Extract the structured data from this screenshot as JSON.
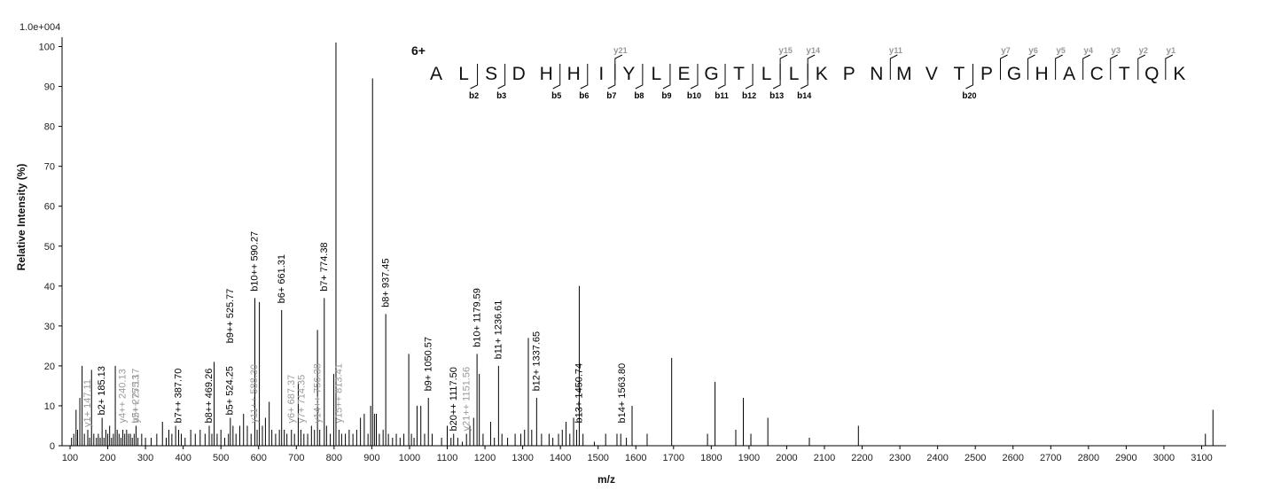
{
  "chart_data": {
    "type": "bar",
    "scale_label": "1.0e+004",
    "xlabel": "m/z",
    "ylabel": "Relative   Intensity (%)",
    "xlim": [
      100,
      3170
    ],
    "ylim": [
      0,
      101
    ],
    "xticks": [
      100,
      200,
      300,
      400,
      500,
      600,
      700,
      800,
      900,
      1000,
      1100,
      1200,
      1300,
      1400,
      1500,
      1600,
      1700,
      1800,
      1900,
      2000,
      2100,
      2200,
      2300,
      2400,
      2500,
      2600,
      2700,
      2800,
      2900,
      3000,
      3100
    ],
    "yticks": [
      0,
      10,
      20,
      30,
      40,
      50,
      60,
      70,
      80,
      90,
      100
    ],
    "peaks": [
      {
        "mz": 104,
        "y": 2
      },
      {
        "mz": 110,
        "y": 3
      },
      {
        "mz": 116,
        "y": 9
      },
      {
        "mz": 120,
        "y": 4
      },
      {
        "mz": 126,
        "y": 12
      },
      {
        "mz": 132,
        "y": 20
      },
      {
        "mz": 138,
        "y": 3
      },
      {
        "mz": 147,
        "y": 4
      },
      {
        "mz": 152,
        "y": 2
      },
      {
        "mz": 157,
        "y": 19
      },
      {
        "mz": 163,
        "y": 3
      },
      {
        "mz": 170,
        "y": 2
      },
      {
        "mz": 175,
        "y": 3
      },
      {
        "mz": 180,
        "y": 2
      },
      {
        "mz": 185,
        "y": 7
      },
      {
        "mz": 190,
        "y": 2
      },
      {
        "mz": 195,
        "y": 4
      },
      {
        "mz": 200,
        "y": 3
      },
      {
        "mz": 205,
        "y": 5
      },
      {
        "mz": 210,
        "y": 2
      },
      {
        "mz": 215,
        "y": 3
      },
      {
        "mz": 220,
        "y": 20
      },
      {
        "mz": 225,
        "y": 4
      },
      {
        "mz": 230,
        "y": 3
      },
      {
        "mz": 235,
        "y": 2
      },
      {
        "mz": 240,
        "y": 4
      },
      {
        "mz": 245,
        "y": 3
      },
      {
        "mz": 250,
        "y": 4
      },
      {
        "mz": 255,
        "y": 3
      },
      {
        "mz": 260,
        "y": 3
      },
      {
        "mz": 265,
        "y": 2
      },
      {
        "mz": 270,
        "y": 3
      },
      {
        "mz": 275,
        "y": 5
      },
      {
        "mz": 280,
        "y": 2
      },
      {
        "mz": 290,
        "y": 3
      },
      {
        "mz": 300,
        "y": 2
      },
      {
        "mz": 315,
        "y": 2
      },
      {
        "mz": 330,
        "y": 3
      },
      {
        "mz": 345,
        "y": 6
      },
      {
        "mz": 355,
        "y": 2
      },
      {
        "mz": 362,
        "y": 4
      },
      {
        "mz": 370,
        "y": 3
      },
      {
        "mz": 380,
        "y": 5
      },
      {
        "mz": 388,
        "y": 4
      },
      {
        "mz": 395,
        "y": 3
      },
      {
        "mz": 405,
        "y": 2
      },
      {
        "mz": 420,
        "y": 4
      },
      {
        "mz": 432,
        "y": 3
      },
      {
        "mz": 445,
        "y": 4
      },
      {
        "mz": 458,
        "y": 3
      },
      {
        "mz": 469,
        "y": 5
      },
      {
        "mz": 476,
        "y": 3
      },
      {
        "mz": 482,
        "y": 21
      },
      {
        "mz": 490,
        "y": 3
      },
      {
        "mz": 500,
        "y": 4
      },
      {
        "mz": 510,
        "y": 2
      },
      {
        "mz": 520,
        "y": 3
      },
      {
        "mz": 525,
        "y": 7
      },
      {
        "mz": 532,
        "y": 5
      },
      {
        "mz": 540,
        "y": 3
      },
      {
        "mz": 550,
        "y": 5
      },
      {
        "mz": 560,
        "y": 8
      },
      {
        "mz": 570,
        "y": 5
      },
      {
        "mz": 580,
        "y": 3
      },
      {
        "mz": 590,
        "y": 37
      },
      {
        "mz": 596,
        "y": 4
      },
      {
        "mz": 602,
        "y": 36
      },
      {
        "mz": 610,
        "y": 5
      },
      {
        "mz": 618,
        "y": 7
      },
      {
        "mz": 628,
        "y": 11
      },
      {
        "mz": 635,
        "y": 4
      },
      {
        "mz": 645,
        "y": 3
      },
      {
        "mz": 655,
        "y": 4
      },
      {
        "mz": 661,
        "y": 34
      },
      {
        "mz": 668,
        "y": 4
      },
      {
        "mz": 675,
        "y": 3
      },
      {
        "mz": 687,
        "y": 4
      },
      {
        "mz": 695,
        "y": 3
      },
      {
        "mz": 705,
        "y": 16
      },
      {
        "mz": 712,
        "y": 4
      },
      {
        "mz": 720,
        "y": 3
      },
      {
        "mz": 730,
        "y": 3
      },
      {
        "mz": 740,
        "y": 5
      },
      {
        "mz": 748,
        "y": 4
      },
      {
        "mz": 756,
        "y": 29
      },
      {
        "mz": 762,
        "y": 4
      },
      {
        "mz": 774,
        "y": 37
      },
      {
        "mz": 780,
        "y": 5
      },
      {
        "mz": 790,
        "y": 3
      },
      {
        "mz": 799,
        "y": 18
      },
      {
        "mz": 805,
        "y": 101
      },
      {
        "mz": 813,
        "y": 4
      },
      {
        "mz": 820,
        "y": 3
      },
      {
        "mz": 830,
        "y": 3
      },
      {
        "mz": 840,
        "y": 4
      },
      {
        "mz": 850,
        "y": 3
      },
      {
        "mz": 860,
        "y": 4
      },
      {
        "mz": 870,
        "y": 7
      },
      {
        "mz": 880,
        "y": 8
      },
      {
        "mz": 890,
        "y": 3
      },
      {
        "mz": 897,
        "y": 10
      },
      {
        "mz": 902,
        "y": 92
      },
      {
        "mz": 907,
        "y": 8
      },
      {
        "mz": 912,
        "y": 8
      },
      {
        "mz": 920,
        "y": 3
      },
      {
        "mz": 930,
        "y": 4
      },
      {
        "mz": 937,
        "y": 33
      },
      {
        "mz": 944,
        "y": 3
      },
      {
        "mz": 955,
        "y": 2
      },
      {
        "mz": 965,
        "y": 3
      },
      {
        "mz": 975,
        "y": 2
      },
      {
        "mz": 985,
        "y": 3
      },
      {
        "mz": 998,
        "y": 23
      },
      {
        "mz": 1005,
        "y": 3
      },
      {
        "mz": 1012,
        "y": 2
      },
      {
        "mz": 1020,
        "y": 10
      },
      {
        "mz": 1030,
        "y": 10
      },
      {
        "mz": 1040,
        "y": 3
      },
      {
        "mz": 1050,
        "y": 12
      },
      {
        "mz": 1060,
        "y": 3
      },
      {
        "mz": 1085,
        "y": 2
      },
      {
        "mz": 1100,
        "y": 5
      },
      {
        "mz": 1110,
        "y": 2
      },
      {
        "mz": 1117,
        "y": 3
      },
      {
        "mz": 1128,
        "y": 2
      },
      {
        "mz": 1140,
        "y": 1
      },
      {
        "mz": 1151,
        "y": 3
      },
      {
        "mz": 1160,
        "y": 5
      },
      {
        "mz": 1170,
        "y": 7
      },
      {
        "mz": 1179,
        "y": 23
      },
      {
        "mz": 1185,
        "y": 18
      },
      {
        "mz": 1195,
        "y": 3
      },
      {
        "mz": 1215,
        "y": 6
      },
      {
        "mz": 1225,
        "y": 2
      },
      {
        "mz": 1236,
        "y": 20
      },
      {
        "mz": 1245,
        "y": 3
      },
      {
        "mz": 1260,
        "y": 2
      },
      {
        "mz": 1280,
        "y": 3
      },
      {
        "mz": 1295,
        "y": 3
      },
      {
        "mz": 1305,
        "y": 4
      },
      {
        "mz": 1315,
        "y": 27
      },
      {
        "mz": 1324,
        "y": 4
      },
      {
        "mz": 1337,
        "y": 12
      },
      {
        "mz": 1350,
        "y": 3
      },
      {
        "mz": 1370,
        "y": 3
      },
      {
        "mz": 1380,
        "y": 2
      },
      {
        "mz": 1395,
        "y": 3
      },
      {
        "mz": 1405,
        "y": 4
      },
      {
        "mz": 1415,
        "y": 6
      },
      {
        "mz": 1425,
        "y": 3
      },
      {
        "mz": 1435,
        "y": 7
      },
      {
        "mz": 1443,
        "y": 4
      },
      {
        "mz": 1450,
        "y": 40
      },
      {
        "mz": 1460,
        "y": 3
      },
      {
        "mz": 1490,
        "y": 1
      },
      {
        "mz": 1520,
        "y": 3
      },
      {
        "mz": 1550,
        "y": 3
      },
      {
        "mz": 1560,
        "y": 3
      },
      {
        "mz": 1575,
        "y": 2
      },
      {
        "mz": 1590,
        "y": 10
      },
      {
        "mz": 1630,
        "y": 3
      },
      {
        "mz": 1695,
        "y": 22
      },
      {
        "mz": 1790,
        "y": 3
      },
      {
        "mz": 1810,
        "y": 16
      },
      {
        "mz": 1865,
        "y": 4
      },
      {
        "mz": 1885,
        "y": 12
      },
      {
        "mz": 1905,
        "y": 3
      },
      {
        "mz": 1950,
        "y": 7
      },
      {
        "mz": 2060,
        "y": 2
      },
      {
        "mz": 2190,
        "y": 5
      },
      {
        "mz": 3110,
        "y": 3
      },
      {
        "mz": 3130,
        "y": 9
      }
    ],
    "peak_labels": [
      {
        "mz": 147.11,
        "y": 4,
        "text": "y1+ 147.11",
        "grey": true
      },
      {
        "mz": 185.13,
        "y": 7,
        "text": "b2+ 185.13",
        "grey": false
      },
      {
        "mz": 240.13,
        "y": 5,
        "text": "y4++ 240.13",
        "grey": true
      },
      {
        "mz": 275.13,
        "y": 5,
        "text": "y2+ 275.13",
        "grey": true
      },
      {
        "mz": 275.17,
        "y": 5,
        "text": "b5++ 275.17",
        "grey": true
      },
      {
        "mz": 387.7,
        "y": 5,
        "text": "b7++ 387.70",
        "grey": false
      },
      {
        "mz": 469.26,
        "y": 5,
        "text": "b8++ 469.26",
        "grey": false
      },
      {
        "mz": 524.25,
        "y": 7,
        "text": "b5+ 524.25",
        "grey": false
      },
      {
        "mz": 525.77,
        "y": 25,
        "text": "b9++ 525.77",
        "grey": false
      },
      {
        "mz": 590.27,
        "y": 38,
        "text": "b10++ 590.27",
        "grey": false
      },
      {
        "mz": 588.3,
        "y": 5,
        "text": "y11++ 588.30",
        "grey": true
      },
      {
        "mz": 661.31,
        "y": 35,
        "text": "b6+ 661.31",
        "grey": false
      },
      {
        "mz": 687.37,
        "y": 5,
        "text": "y6+ 687.37",
        "grey": true
      },
      {
        "mz": 714.35,
        "y": 5,
        "text": "y7+ 714.35",
        "grey": true
      },
      {
        "mz": 756.38,
        "y": 5,
        "text": "y14++ 756.38",
        "grey": true
      },
      {
        "mz": 774.38,
        "y": 38,
        "text": "b7+ 774.38",
        "grey": false
      },
      {
        "mz": 813.41,
        "y": 5,
        "text": "y15++ 813.41",
        "grey": true
      },
      {
        "mz": 937.45,
        "y": 34,
        "text": "b8+ 937.45",
        "grey": false
      },
      {
        "mz": 1050.57,
        "y": 13,
        "text": "b9+ 1050.57",
        "grey": false
      },
      {
        "mz": 1117.5,
        "y": 3,
        "text": "b20++ 1117.50",
        "grey": false
      },
      {
        "mz": 1151.56,
        "y": 3,
        "text": "y21++ 1151.56",
        "grey": true
      },
      {
        "mz": 1179.59,
        "y": 24,
        "text": "b10+ 1179.59",
        "grey": false
      },
      {
        "mz": 1236.61,
        "y": 21,
        "text": "b11+ 1236.61",
        "grey": false
      },
      {
        "mz": 1337.65,
        "y": 13,
        "text": "b12+ 1337.65",
        "grey": false
      },
      {
        "mz": 1450.74,
        "y": 5,
        "text": "b13+ 1450.74",
        "grey": false
      },
      {
        "mz": 1563.8,
        "y": 5,
        "text": "b14+ 1563.80",
        "grey": false
      }
    ],
    "sequence": {
      "charge": "6+",
      "residues": [
        "A",
        "L",
        "S",
        "D",
        "H",
        "H",
        "I",
        "Y",
        "L",
        "E",
        "G",
        "T",
        "L",
        "L",
        "K",
        "P",
        "N",
        "M",
        "V",
        "T",
        "P",
        "G",
        "H",
        "A",
        "C",
        "T",
        "Q",
        "K"
      ],
      "b_ions": [
        {
          "after": 2,
          "label": "b",
          "num": "2"
        },
        {
          "after": 3,
          "label": "b",
          "num": "3"
        },
        {
          "after": 5,
          "label": "b",
          "num": "5"
        },
        {
          "after": 6,
          "label": "b",
          "num": "6"
        },
        {
          "after": 7,
          "label": "b",
          "num": "7"
        },
        {
          "after": 8,
          "label": "b",
          "num": "8"
        },
        {
          "after": 9,
          "label": "b",
          "num": "9"
        },
        {
          "after": 10,
          "label": "b",
          "num": "10"
        },
        {
          "after": 11,
          "label": "b",
          "num": "11"
        },
        {
          "after": 12,
          "label": "b",
          "num": "12"
        },
        {
          "after": 13,
          "label": "b",
          "num": "13"
        },
        {
          "after": 14,
          "label": "b",
          "num": "14"
        },
        {
          "after": 20,
          "label": "b",
          "num": "20"
        }
      ],
      "y_ions": [
        {
          "before": 8,
          "label": "y",
          "num": "21"
        },
        {
          "before": 14,
          "label": "y",
          "num": "15"
        },
        {
          "before": 15,
          "label": "y",
          "num": "14"
        },
        {
          "before": 18,
          "label": "y",
          "num": "11"
        },
        {
          "before": 22,
          "label": "y",
          "num": "7"
        },
        {
          "before": 23,
          "label": "y",
          "num": "6"
        },
        {
          "before": 24,
          "label": "y",
          "num": "5"
        },
        {
          "before": 25,
          "label": "y",
          "num": "4"
        },
        {
          "before": 26,
          "label": "y",
          "num": "3"
        },
        {
          "before": 27,
          "label": "y",
          "num": "2"
        },
        {
          "before": 28,
          "label": "y",
          "num": "1"
        }
      ]
    }
  }
}
